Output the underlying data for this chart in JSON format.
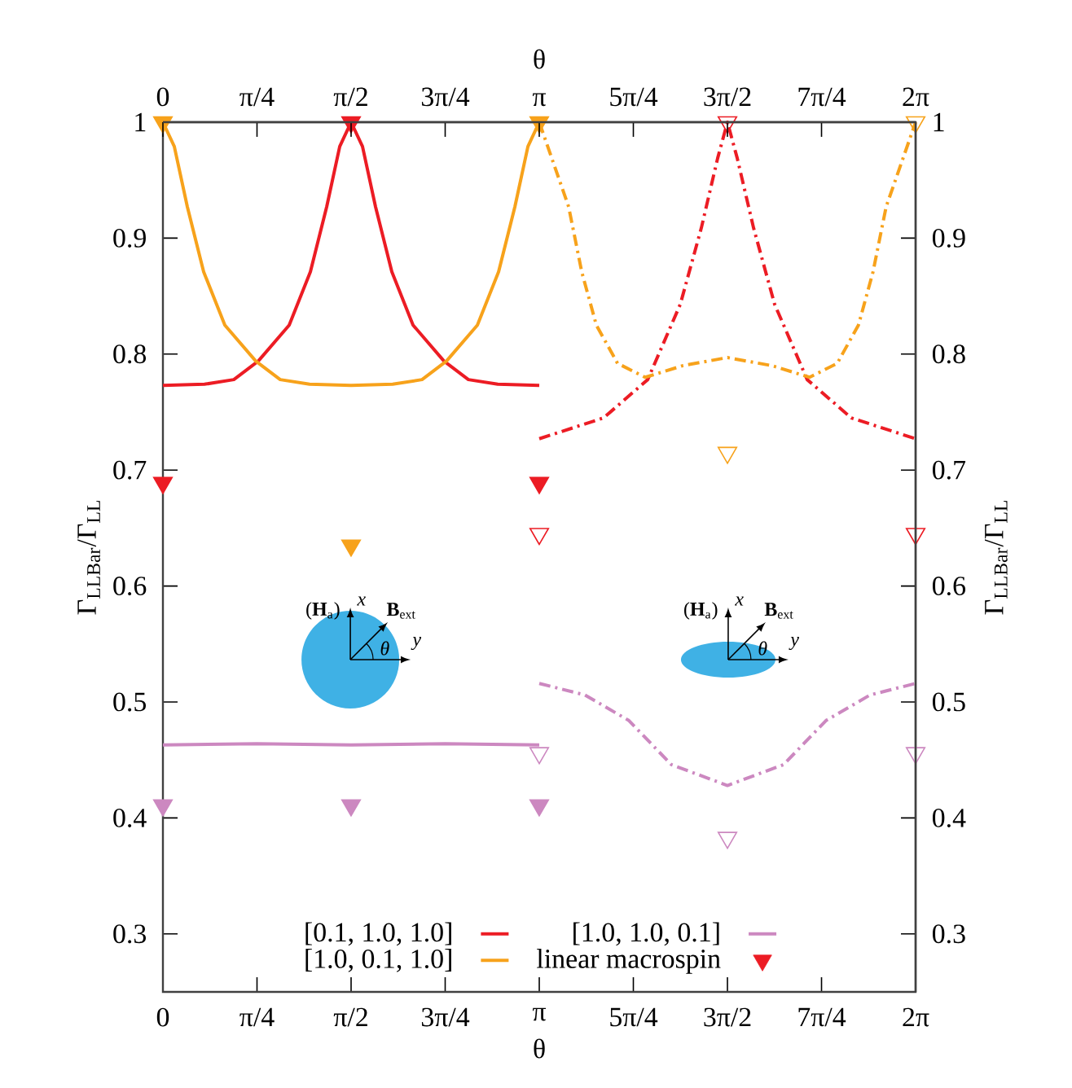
{
  "chart_data": {
    "type": "line",
    "xlabel": "θ",
    "x2label": "θ",
    "ylabel": "Γ$_{LLBar}$/Γ$_{LL}$",
    "y2label": "Γ$_{LLBar}$/Γ$_{LL}$",
    "xlim": [
      0,
      6.2832
    ],
    "x2lim": [
      0,
      6.2832
    ],
    "ylim": [
      0.25,
      1
    ],
    "y2lim": [
      0.25,
      1
    ],
    "xticks": [
      0,
      {
        "value": 0.7854,
        "label": "π/4"
      },
      {
        "value": 1.5708,
        "label": "π/2"
      },
      {
        "value": 2.3562,
        "label": "3π/4"
      },
      {
        "value": 3.1416,
        "label": "π"
      },
      {
        "value": 3.927,
        "label": "5π/4"
      },
      {
        "value": 4.7124,
        "label": "3π/2"
      },
      {
        "value": 5.4978,
        "label": "7π/4"
      },
      {
        "value": 6.2832,
        "label": "2π"
      }
    ],
    "x2ticks": [
      0,
      {
        "value": 0.7854,
        "label": "π/4"
      },
      {
        "value": 1.5708,
        "label": "π/2"
      },
      {
        "value": 2.3562,
        "label": "3π/4"
      },
      {
        "value": 3.1416,
        "label": "π"
      },
      {
        "value": 3.927,
        "label": "5π/4"
      },
      {
        "value": 4.7124,
        "label": "3π/2"
      },
      {
        "value": 5.4978,
        "label": "7π/4"
      },
      {
        "value": 6.2832,
        "label": "2π"
      }
    ],
    "yticks": [
      0.3,
      0.4,
      0.5,
      0.6,
      0.7,
      0.8,
      0.9,
      1
    ],
    "y2ticks": [
      0.3,
      0.4,
      0.5,
      0.6,
      0.7,
      0.8,
      0.9,
      1
    ],
    "legend": "bottom",
    "annotations": [
      "(**H**$_{a}$)",
      "x",
      "**B**$_{ext}$",
      "θ",
      "y",
      "(**H**$_{a}$)",
      "x",
      "**B**$_{ext}$",
      "θ",
      "y"
    ],
    "series": [
      {
        "name": "[0.1, 1.0, 1.0]",
        "color": "#ec1c24",
        "line_style": "solid",
        "x": [
          0,
          0.347,
          0.592,
          0.796,
          1.054,
          1.231,
          1.367,
          1.476,
          1.5708,
          1.666,
          1.775,
          1.911,
          2.088,
          2.346,
          2.55,
          2.795,
          3.1416
        ],
        "values": [
          0.773,
          0.774,
          0.778,
          0.794,
          0.825,
          0.871,
          0.927,
          0.979,
          1.0,
          0.979,
          0.927,
          0.871,
          0.825,
          0.794,
          0.778,
          0.774,
          0.773
        ]
      },
      {
        "name": "[1.0, 0.1, 1.0]",
        "color": "#f7a21b",
        "line_style": "solid",
        "x": [
          0,
          0.095,
          0.204,
          0.34,
          0.517,
          0.775,
          0.979,
          1.224,
          1.5708,
          1.918,
          2.163,
          2.367,
          2.625,
          2.802,
          2.938,
          3.047,
          3.1416
        ],
        "values": [
          1.0,
          0.979,
          0.927,
          0.871,
          0.825,
          0.794,
          0.778,
          0.774,
          0.773,
          0.774,
          0.778,
          0.794,
          0.825,
          0.871,
          0.927,
          0.979,
          1.0
        ]
      },
      {
        "name": "[1.0, 1.0, 0.1]",
        "color": "#cc88c0",
        "line_style": "solid",
        "x": [
          0,
          0.785,
          1.5708,
          2.356,
          3.1416
        ],
        "values": [
          0.463,
          0.464,
          0.463,
          0.464,
          0.463
        ]
      },
      {
        "color": "#ec1c24",
        "line_style": "dashed",
        "x": [
          3.1416,
          3.679,
          4.047,
          4.319,
          4.495,
          4.631,
          4.7124,
          4.794,
          4.93,
          5.106,
          5.378,
          5.746,
          6.2832
        ],
        "values": [
          0.727,
          0.745,
          0.778,
          0.843,
          0.909,
          0.969,
          1.0,
          0.969,
          0.909,
          0.843,
          0.778,
          0.745,
          0.727
        ]
      },
      {
        "color": "#f7a21b",
        "line_style": "dashed",
        "x": [
          3.1416,
          3.387,
          3.496,
          3.618,
          3.795,
          4.026,
          4.339,
          4.7124,
          5.085,
          5.398,
          5.629,
          5.806,
          5.928,
          6.037,
          6.2832
        ],
        "values": [
          1.0,
          0.927,
          0.871,
          0.825,
          0.792,
          0.78,
          0.79,
          0.797,
          0.79,
          0.78,
          0.792,
          0.825,
          0.871,
          0.927,
          1.0
        ]
      },
      {
        "color": "#cc88c0",
        "line_style": "dashed",
        "x": [
          3.1416,
          3.523,
          3.89,
          4.244,
          4.7124,
          5.181,
          5.535,
          5.902,
          6.2832
        ],
        "values": [
          0.516,
          0.506,
          0.484,
          0.446,
          0.428,
          0.446,
          0.484,
          0.506,
          0.516
        ]
      },
      {
        "type": "scatter",
        "name": "linear macrospin",
        "color": "#ec1c24",
        "marker": "triangle",
        "x": [
          0,
          0,
          0,
          1.5708,
          1.5708,
          1.5708,
          3.1416,
          3.1416,
          3.1416
        ],
        "values": [
          1.0,
          0.689,
          0.411,
          1.0,
          0.635,
          0.411,
          1.0,
          0.689,
          0.411
        ],
        "colors": [
          "#f7a21b",
          "#ec1c24",
          "#cc88c0",
          "#ec1c24",
          "#f7a21b",
          "#cc88c0",
          "#f7a21b",
          "#ec1c24",
          "#cc88c0"
        ]
      },
      {
        "type": "scatter",
        "marker": "triangle",
        "x": [
          3.1416,
          3.1416,
          4.7124,
          4.7124,
          4.7124,
          6.2832,
          6.2832,
          6.2832
        ],
        "values": [
          0.645,
          0.456,
          1.0,
          0.715,
          0.383,
          1.0,
          0.645,
          0.456
        ],
        "colors": [
          "#ec1c24",
          "#cc88c0",
          "#ec1c24",
          "#f7a21b",
          "#cc88c0",
          "#f7a21b",
          "#ec1c24",
          "#cc88c0"
        ]
      }
    ]
  }
}
